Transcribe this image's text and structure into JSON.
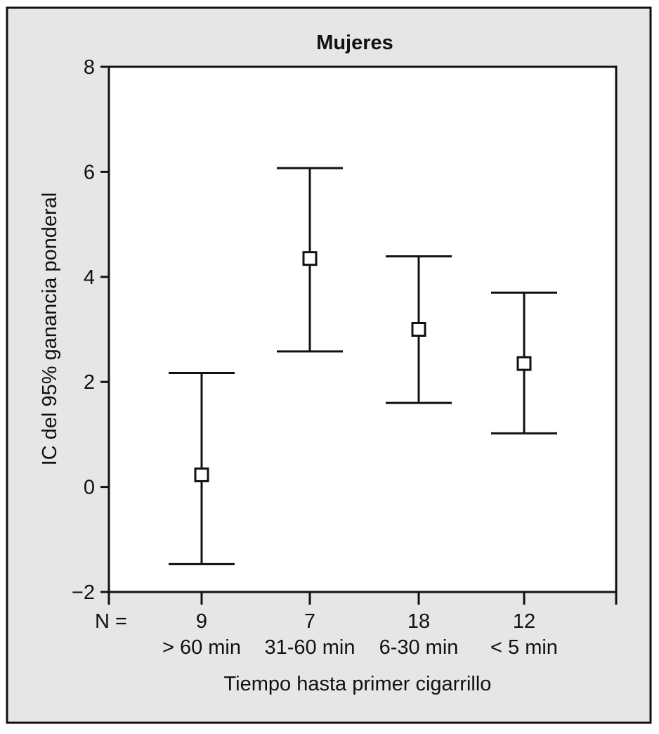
{
  "chart_data": {
    "type": "errorbar",
    "title": "Mujeres",
    "xlabel": "Tiempo hasta primer cigarrillo",
    "ylabel": "IC del 95% ganancia ponderal",
    "n_label": "N =",
    "categories": [
      "> 60 min",
      "31-60 min",
      "6-30 min",
      "< 5 min"
    ],
    "n_values": [
      "9",
      "7",
      "18",
      "12"
    ],
    "series": [
      {
        "mean": [
          0.23,
          4.35,
          3.0,
          2.35
        ],
        "lower": [
          -1.47,
          2.58,
          1.6,
          1.02
        ],
        "upper": [
          2.17,
          6.07,
          4.39,
          3.7
        ]
      }
    ],
    "ylim": [
      -2,
      8
    ],
    "yticks": [
      -2,
      0,
      2,
      4,
      6,
      8
    ],
    "ytick_labels": [
      "−2",
      "0",
      "2",
      "4",
      "6",
      "8"
    ],
    "grid": false,
    "colors": {
      "background": "#e6e6e6",
      "plot_area": "#ffffff",
      "ink": "#111111"
    }
  }
}
